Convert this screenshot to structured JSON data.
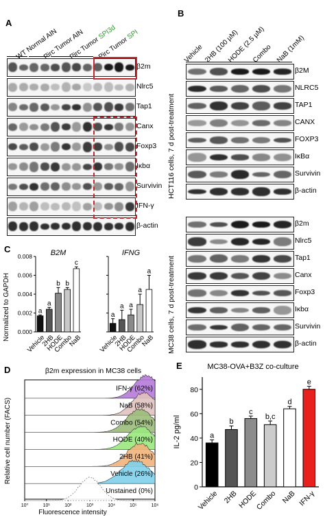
{
  "panelA": {
    "letter": "A",
    "groups": [
      {
        "text": "WT Normal AIN",
        "highlight": "",
        "suffix": ""
      },
      {
        "text": "Pirc Tumor AIN",
        "highlight": "",
        "suffix": ""
      },
      {
        "text": "Pirc Tumor ",
        "highlight": "SPI3d",
        "suffix": ""
      },
      {
        "text": "Pirc Tumor ",
        "highlight": "SPI",
        "suffix": ""
      }
    ],
    "rows": [
      "β2m",
      "Nlrc5",
      "Tap1",
      "Canx",
      "Foxp3",
      "Iκbα",
      "Survivin",
      "IFN-γ",
      "β-actin"
    ],
    "colors": {
      "highlight": "#2e9a2e",
      "box": "#c0282d"
    }
  },
  "panelB": {
    "letter": "B",
    "columns": [
      "Vehicle",
      "2HB (100 µM)",
      "HODE (2.5 µM)",
      "Combo",
      "NaB (1mM)"
    ],
    "hct116": {
      "side_label": "HCT116 cells, 7 d post-treatment",
      "rows": [
        "β2M",
        "NLRC5",
        "TAP1",
        "CANX",
        "FOXP3",
        "IκBα",
        "Survivin",
        "β-actin"
      ]
    },
    "mc38": {
      "side_label": "MC38 cells, 7 d post-treatment",
      "rows": [
        "β2m",
        "Nlrc5",
        "Tap1",
        "Canx",
        "Foxp3",
        "Iκbα",
        "Survivin",
        "β-actin"
      ]
    }
  },
  "panelC": {
    "letter": "C",
    "ylabel": "Normalized to GAPDH",
    "chart_data": [
      {
        "type": "bar",
        "title": "B2M",
        "categories": [
          "Vehicle",
          "2HB",
          "HODE",
          "Combo",
          "NaB"
        ],
        "values": [
          0.0017,
          0.0024,
          0.0041,
          0.0045,
          0.0067
        ],
        "errors": [
          0.0001,
          0.0002,
          0.0006,
          0.0002,
          0.0002
        ],
        "letters": [
          "a",
          "a",
          "b",
          "b",
          "c"
        ],
        "ylim": [
          0,
          0.008
        ],
        "yticks": [
          "0.000",
          "0.002",
          "0.004",
          "0.006",
          "0.008"
        ],
        "colors": [
          "#111111",
          "#555555",
          "#8a8a8a",
          "#c8c8c8",
          "#ffffff"
        ]
      },
      {
        "type": "bar",
        "title": "IFNG",
        "categories": [
          "Vehicle",
          "2HB",
          "HODE",
          "Combo",
          "NaB"
        ],
        "values": [
          0.0009,
          0.0013,
          0.0018,
          0.0029,
          0.0045
        ],
        "errors": [
          0.0005,
          0.001,
          0.0006,
          0.0011,
          0.0015
        ],
        "letters": [
          "a",
          "a",
          "a",
          "a",
          "a"
        ],
        "ylim": [
          0,
          0.008
        ],
        "colors": [
          "#111111",
          "#555555",
          "#8a8a8a",
          "#c8c8c8",
          "#ffffff"
        ]
      }
    ]
  },
  "panelD": {
    "letter": "D",
    "title": "β2m expression in MC38 cells",
    "ylabel": "Relative cell number (FACS)",
    "xlabel": "Fluorescence intensity",
    "xticks": [
      "10⁰",
      "10¹",
      "10²",
      "10³",
      "10⁴",
      "10⁵",
      "10⁶"
    ],
    "chart_data": {
      "type": "area",
      "series": [
        {
          "name": "IFN-γ (62%)",
          "color": "#b57ad9",
          "peak": 5.6,
          "width": 0.55
        },
        {
          "name": "NaB (58%)",
          "color": "#e0c2bf",
          "peak": 5.5,
          "width": 0.55
        },
        {
          "name": "Combo (54%)",
          "color": "#9cbd7a",
          "peak": 5.3,
          "width": 0.6
        },
        {
          "name": "HODE (40%)",
          "color": "#9ae87e",
          "peak": 5.35,
          "width": 0.6
        },
        {
          "name": "2HB (41%)",
          "color": "#f0b27a",
          "peak": 5.3,
          "width": 0.6
        },
        {
          "name": "Vehicle (26%)",
          "color": "#7fd0ea",
          "peak": 5.1,
          "width": 0.65
        },
        {
          "name": "Unstained (0%)",
          "color": "#ffffff",
          "peak": 3.0,
          "width": 0.5
        }
      ]
    }
  },
  "panelE": {
    "letter": "E",
    "chart_data": {
      "type": "bar",
      "title": "MC38-OVA+B3Z co-culture",
      "ylabel": "IL-2 pg/ml",
      "categories": [
        "Vehicle",
        "2HB",
        "HODE",
        "Combo",
        "NaB",
        "IFN-γ"
      ],
      "values": [
        36,
        47,
        56,
        51,
        64,
        80
      ],
      "errors": [
        2.5,
        3,
        2,
        3,
        2,
        2.5
      ],
      "letters": [
        "a",
        "b",
        "c",
        "b,c",
        "d",
        "e"
      ],
      "ylim": [
        0,
        90
      ],
      "yticks": [
        "0",
        "20",
        "40",
        "60",
        "80"
      ],
      "colors": [
        "#000000",
        "#555555",
        "#8c8c8c",
        "#cccccc",
        "#ffffff",
        "#e8211f"
      ]
    }
  }
}
